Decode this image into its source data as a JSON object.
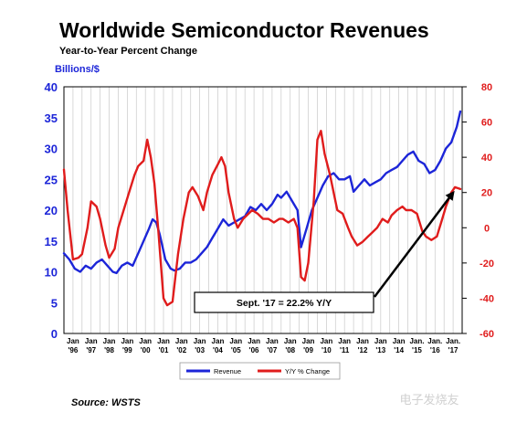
{
  "chart_data": {
    "type": "line",
    "title": "Worldwide Semiconductor Revenues",
    "subtitle": "Year-to-Year Percent Change",
    "left_axis_label": "Billions/$",
    "left_ylim": [
      0,
      40
    ],
    "left_ticks": [
      "0",
      "5",
      "10",
      "15",
      "20",
      "25",
      "30",
      "35",
      "40"
    ],
    "right_ylim": [
      -60,
      80
    ],
    "right_ticks": [
      "-60",
      "-40",
      "-20",
      "0",
      "20",
      "40",
      "60",
      "80"
    ],
    "x_tick_labels": [
      {
        "month": "Jan",
        "year": "'96"
      },
      {
        "month": "Jan",
        "year": "'97"
      },
      {
        "month": "Jan",
        "year": "'98"
      },
      {
        "month": "Jan",
        "year": "'99"
      },
      {
        "month": "Jan",
        "year": "'00"
      },
      {
        "month": "Jan",
        "year": "'01"
      },
      {
        "month": "Jan",
        "year": "'02"
      },
      {
        "month": "Jan",
        "year": "'03"
      },
      {
        "month": "Jan",
        "year": "'04"
      },
      {
        "month": "Jan",
        "year": "'05"
      },
      {
        "month": "Jan",
        "year": "'06"
      },
      {
        "month": "Jan",
        "year": "'07"
      },
      {
        "month": "Jan",
        "year": "'08"
      },
      {
        "month": "Jan",
        "year": "'09"
      },
      {
        "month": "Jan",
        "year": "'10"
      },
      {
        "month": "Jan",
        "year": "'11"
      },
      {
        "month": "Jan",
        "year": "'12"
      },
      {
        "month": "Jan",
        "year": "'13"
      },
      {
        "month": "Jan",
        "year": "'14"
      },
      {
        "month": "Jan.",
        "year": "'15"
      },
      {
        "month": "Jan.",
        "year": "'16"
      },
      {
        "month": "Jan.",
        "year": "'17"
      }
    ],
    "grid": true,
    "legend_placement": "bottom",
    "series": [
      {
        "name": "Revenue",
        "axis": "left",
        "color": "#1c25d8",
        "points": [
          [
            1996.0,
            13
          ],
          [
            1996.3,
            12
          ],
          [
            1996.6,
            10.5
          ],
          [
            1996.9,
            10
          ],
          [
            1997.2,
            11
          ],
          [
            1997.5,
            10.5
          ],
          [
            1997.8,
            11.5
          ],
          [
            1998.1,
            12
          ],
          [
            1998.4,
            11
          ],
          [
            1998.7,
            10
          ],
          [
            1998.9,
            9.8
          ],
          [
            1999.2,
            11
          ],
          [
            1999.5,
            11.5
          ],
          [
            1999.8,
            11
          ],
          [
            2000.1,
            13
          ],
          [
            2000.4,
            15
          ],
          [
            2000.7,
            17
          ],
          [
            2000.9,
            18.5
          ],
          [
            2001.1,
            18
          ],
          [
            2001.3,
            16
          ],
          [
            2001.6,
            12
          ],
          [
            2001.9,
            10.5
          ],
          [
            2002.1,
            10.2
          ],
          [
            2002.4,
            10.5
          ],
          [
            2002.7,
            11.5
          ],
          [
            2003.0,
            11.5
          ],
          [
            2003.3,
            12
          ],
          [
            2003.6,
            13
          ],
          [
            2003.9,
            14
          ],
          [
            2004.2,
            15.5
          ],
          [
            2004.5,
            17
          ],
          [
            2004.8,
            18.5
          ],
          [
            2005.1,
            17.5
          ],
          [
            2005.4,
            18
          ],
          [
            2005.7,
            18.5
          ],
          [
            2006.0,
            19
          ],
          [
            2006.3,
            20.5
          ],
          [
            2006.6,
            20
          ],
          [
            2006.9,
            21
          ],
          [
            2007.2,
            20
          ],
          [
            2007.5,
            21
          ],
          [
            2007.8,
            22.5
          ],
          [
            2008.0,
            22
          ],
          [
            2008.3,
            23
          ],
          [
            2008.6,
            21.5
          ],
          [
            2008.9,
            20
          ],
          [
            2009.1,
            14
          ],
          [
            2009.4,
            17
          ],
          [
            2009.7,
            20
          ],
          [
            2010.0,
            22
          ],
          [
            2010.3,
            24
          ],
          [
            2010.6,
            25.5
          ],
          [
            2010.9,
            26
          ],
          [
            2011.2,
            25
          ],
          [
            2011.5,
            25
          ],
          [
            2011.8,
            25.5
          ],
          [
            2012.0,
            23
          ],
          [
            2012.3,
            24
          ],
          [
            2012.6,
            25
          ],
          [
            2012.9,
            24
          ],
          [
            2013.2,
            24.5
          ],
          [
            2013.5,
            25
          ],
          [
            2013.8,
            26
          ],
          [
            2014.1,
            26.5
          ],
          [
            2014.4,
            27
          ],
          [
            2014.7,
            28
          ],
          [
            2015.0,
            29
          ],
          [
            2015.3,
            29.5
          ],
          [
            2015.6,
            28
          ],
          [
            2015.9,
            27.5
          ],
          [
            2016.2,
            26
          ],
          [
            2016.5,
            26.5
          ],
          [
            2016.8,
            28
          ],
          [
            2017.1,
            30
          ],
          [
            2017.4,
            31
          ],
          [
            2017.7,
            33.5
          ],
          [
            2017.9,
            36
          ]
        ]
      },
      {
        "name": "Y/Y % Change",
        "axis": "right",
        "color": "#e01c1c",
        "points": [
          [
            1996.0,
            33
          ],
          [
            1996.2,
            10
          ],
          [
            1996.5,
            -18
          ],
          [
            1996.8,
            -17
          ],
          [
            1997.0,
            -15
          ],
          [
            1997.3,
            0
          ],
          [
            1997.5,
            15
          ],
          [
            1997.8,
            12
          ],
          [
            1998.0,
            5
          ],
          [
            1998.3,
            -10
          ],
          [
            1998.5,
            -17
          ],
          [
            1998.8,
            -12
          ],
          [
            1999.0,
            0
          ],
          [
            1999.3,
            10
          ],
          [
            1999.6,
            20
          ],
          [
            1999.9,
            30
          ],
          [
            2000.1,
            35
          ],
          [
            2000.4,
            38
          ],
          [
            2000.6,
            50
          ],
          [
            2000.8,
            40
          ],
          [
            2001.0,
            25
          ],
          [
            2001.2,
            0
          ],
          [
            2001.5,
            -40
          ],
          [
            2001.7,
            -44
          ],
          [
            2002.0,
            -42
          ],
          [
            2002.3,
            -15
          ],
          [
            2002.6,
            5
          ],
          [
            2002.9,
            20
          ],
          [
            2003.1,
            23
          ],
          [
            2003.4,
            18
          ],
          [
            2003.7,
            10
          ],
          [
            2003.9,
            20
          ],
          [
            2004.2,
            30
          ],
          [
            2004.5,
            36
          ],
          [
            2004.7,
            40
          ],
          [
            2004.9,
            35
          ],
          [
            2005.1,
            20
          ],
          [
            2005.4,
            5
          ],
          [
            2005.6,
            0
          ],
          [
            2005.9,
            5
          ],
          [
            2006.1,
            7
          ],
          [
            2006.4,
            10
          ],
          [
            2006.7,
            8
          ],
          [
            2007.0,
            5
          ],
          [
            2007.3,
            5
          ],
          [
            2007.6,
            3
          ],
          [
            2007.9,
            5
          ],
          [
            2008.1,
            5
          ],
          [
            2008.4,
            3
          ],
          [
            2008.7,
            5
          ],
          [
            2008.9,
            0
          ],
          [
            2009.1,
            -28
          ],
          [
            2009.3,
            -30
          ],
          [
            2009.5,
            -20
          ],
          [
            2009.8,
            15
          ],
          [
            2010.0,
            50
          ],
          [
            2010.2,
            55
          ],
          [
            2010.4,
            42
          ],
          [
            2010.7,
            30
          ],
          [
            2010.9,
            20
          ],
          [
            2011.1,
            10
          ],
          [
            2011.4,
            8
          ],
          [
            2011.7,
            0
          ],
          [
            2011.9,
            -5
          ],
          [
            2012.2,
            -10
          ],
          [
            2012.5,
            -8
          ],
          [
            2012.8,
            -5
          ],
          [
            2013.0,
            -3
          ],
          [
            2013.3,
            0
          ],
          [
            2013.6,
            5
          ],
          [
            2013.9,
            3
          ],
          [
            2014.1,
            7
          ],
          [
            2014.4,
            10
          ],
          [
            2014.7,
            12
          ],
          [
            2014.9,
            10
          ],
          [
            2015.2,
            10
          ],
          [
            2015.5,
            8
          ],
          [
            2015.8,
            -2
          ],
          [
            2016.0,
            -5
          ],
          [
            2016.3,
            -7
          ],
          [
            2016.6,
            -5
          ],
          [
            2016.9,
            5
          ],
          [
            2017.1,
            12
          ],
          [
            2017.4,
            20
          ],
          [
            2017.6,
            23
          ],
          [
            2017.9,
            22
          ]
        ]
      }
    ],
    "annotation": {
      "text": "Sept. '17 = 22.2% Y/Y",
      "points_to": [
        2017.67,
        22.2
      ]
    },
    "source": "Source: WSTS",
    "watermark": "电子发烧友"
  }
}
